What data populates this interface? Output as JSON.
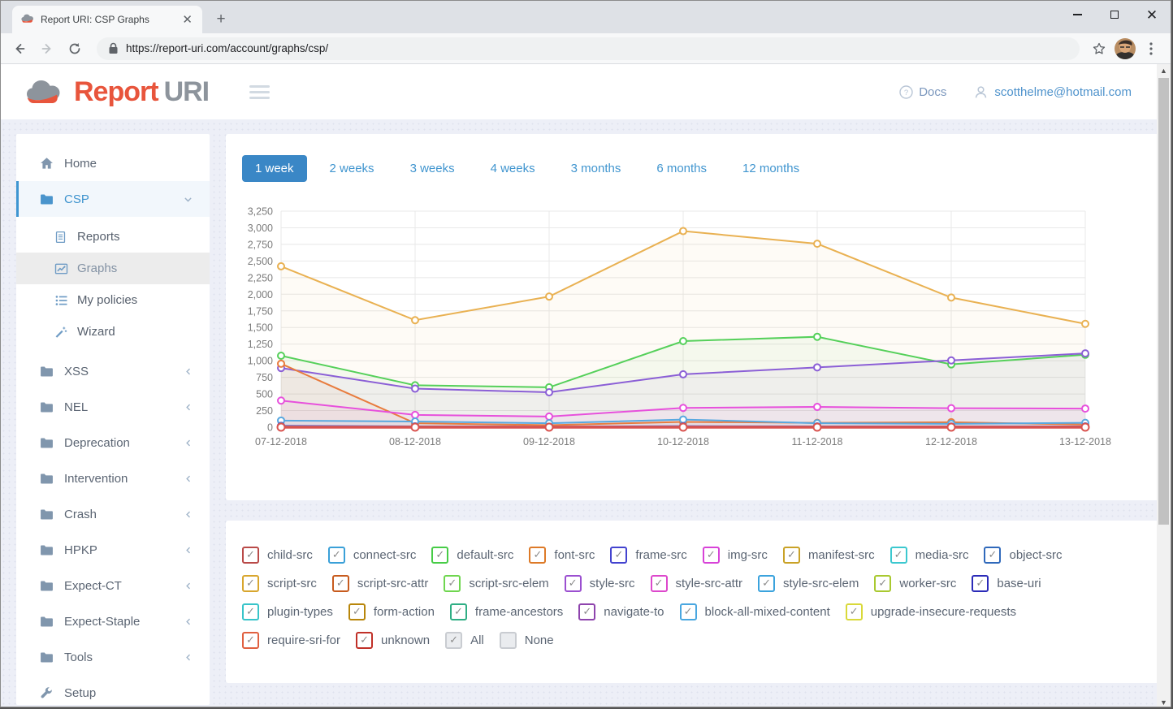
{
  "browser": {
    "tab_title": "Report URI: CSP Graphs",
    "url": "https://report-uri.com/account/graphs/csp/",
    "icons": [
      "favicon-cloud",
      "close-tab-icon",
      "new-tab-icon",
      "minimize-icon",
      "maximize-icon",
      "close-icon",
      "back-icon",
      "forward-icon",
      "refresh-icon",
      "lock-icon",
      "star-icon",
      "avatar",
      "kebab-menu-icon"
    ]
  },
  "header": {
    "logo_text_1": "Report",
    "logo_text_2": "URI",
    "docs_label": "Docs",
    "account_email": "scotthelme@hotmail.com",
    "icons": [
      "cloud-logo",
      "hamburger-icon",
      "question-icon",
      "user-icon"
    ]
  },
  "sidebar": {
    "items": [
      {
        "label": "Home",
        "icon": "home-icon",
        "type": "link"
      },
      {
        "label": "CSP",
        "icon": "folder-icon",
        "type": "group",
        "state": "expanded",
        "active": true,
        "children": [
          {
            "label": "Reports",
            "icon": "file-icon"
          },
          {
            "label": "Graphs",
            "icon": "chart-icon",
            "selected": true
          },
          {
            "label": "My policies",
            "icon": "list-icon"
          },
          {
            "label": "Wizard",
            "icon": "wand-icon"
          }
        ]
      },
      {
        "label": "XSS",
        "icon": "folder-icon",
        "type": "group",
        "state": "collapsed"
      },
      {
        "label": "NEL",
        "icon": "folder-icon",
        "type": "group",
        "state": "collapsed"
      },
      {
        "label": "Deprecation",
        "icon": "folder-icon",
        "type": "group",
        "state": "collapsed"
      },
      {
        "label": "Intervention",
        "icon": "folder-icon",
        "type": "group",
        "state": "collapsed"
      },
      {
        "label": "Crash",
        "icon": "folder-icon",
        "type": "group",
        "state": "collapsed"
      },
      {
        "label": "HPKP",
        "icon": "folder-icon",
        "type": "group",
        "state": "collapsed"
      },
      {
        "label": "Expect-CT",
        "icon": "folder-icon",
        "type": "group",
        "state": "collapsed"
      },
      {
        "label": "Expect-Staple",
        "icon": "folder-icon",
        "type": "group",
        "state": "collapsed"
      },
      {
        "label": "Tools",
        "icon": "folder-icon",
        "type": "group",
        "state": "collapsed"
      },
      {
        "label": "Setup",
        "icon": "wrench-icon",
        "type": "link"
      }
    ]
  },
  "range_tabs": [
    {
      "label": "1 week",
      "selected": true
    },
    {
      "label": "2 weeks",
      "selected": false
    },
    {
      "label": "3 weeks",
      "selected": false
    },
    {
      "label": "4 weeks",
      "selected": false
    },
    {
      "label": "3 months",
      "selected": false
    },
    {
      "label": "6 months",
      "selected": false
    },
    {
      "label": "12 months",
      "selected": false
    }
  ],
  "chart_data": {
    "type": "line",
    "x": [
      "07-12-2018",
      "08-12-2018",
      "09-12-2018",
      "10-12-2018",
      "11-12-2018",
      "12-12-2018",
      "13-12-2018"
    ],
    "ylim": [
      0,
      3250
    ],
    "ytick_step": 250,
    "grid": true,
    "legend_position": "none",
    "series": [
      {
        "name": "script-src",
        "color": "#e9b152",
        "width": 2,
        "values": [
          2420,
          1610,
          1965,
          2950,
          2760,
          1950,
          1555
        ]
      },
      {
        "name": "default-src",
        "color": "#55d05a",
        "width": 2,
        "values": [
          1075,
          630,
          600,
          1295,
          1360,
          945,
          1090
        ]
      },
      {
        "name": "style-src",
        "color": "#8b5fd6",
        "width": 2,
        "values": [
          890,
          580,
          525,
          795,
          900,
          1005,
          1110
        ]
      },
      {
        "name": "font-src",
        "color": "#e87c3e",
        "width": 2,
        "values": [
          955,
          60,
          30,
          80,
          65,
          75,
          40
        ]
      },
      {
        "name": "img-src",
        "color": "#e750dc",
        "width": 2,
        "values": [
          400,
          185,
          160,
          290,
          305,
          285,
          280
        ]
      },
      {
        "name": "connect-src",
        "color": "#58a8e0",
        "width": 2,
        "values": [
          100,
          85,
          60,
          115,
          60,
          50,
          65
        ]
      },
      {
        "name": "frame-src",
        "color": "#4545d0",
        "width": 2,
        "values": [
          20,
          12,
          8,
          15,
          12,
          10,
          12
        ]
      },
      {
        "name": "media-src",
        "color": "#3cc8cf",
        "width": 2,
        "values": [
          10,
          7,
          5,
          8,
          7,
          5,
          7
        ]
      },
      {
        "name": "manifest-src",
        "color": "#c9a227",
        "width": 2,
        "values": [
          7,
          5,
          4,
          6,
          5,
          4,
          5
        ]
      },
      {
        "name": "child-src",
        "color": "#c0392b",
        "width": 2,
        "values": [
          3,
          3,
          3,
          3,
          3,
          3,
          3
        ]
      },
      {
        "name": "unknown",
        "color": "#d9534f",
        "width": 3.5,
        "values": [
          0,
          0,
          0,
          0,
          0,
          0,
          0
        ]
      }
    ]
  },
  "legend": {
    "items": [
      {
        "label": "child-src",
        "color": "#b94a48",
        "checked": true
      },
      {
        "label": "connect-src",
        "color": "#3aa0d8",
        "checked": true
      },
      {
        "label": "default-src",
        "color": "#47cc47",
        "checked": true
      },
      {
        "label": "font-src",
        "color": "#dd7a28",
        "checked": true
      },
      {
        "label": "frame-src",
        "color": "#4343cf",
        "checked": true
      },
      {
        "label": "img-src",
        "color": "#d843d8",
        "checked": true
      },
      {
        "label": "manifest-src",
        "color": "#c9a227",
        "checked": true
      },
      {
        "label": "media-src",
        "color": "#3cc8cf",
        "checked": true
      },
      {
        "label": "object-src",
        "color": "#3069bb",
        "checked": true
      },
      {
        "label": "script-src",
        "color": "#d8a62e",
        "checked": true
      },
      {
        "label": "script-src-attr",
        "color": "#c75b1e",
        "checked": true
      },
      {
        "label": "script-src-elem",
        "color": "#6fd64f",
        "checked": true
      },
      {
        "label": "style-src",
        "color": "#9b4fd0",
        "checked": true
      },
      {
        "label": "style-src-attr",
        "color": "#dd48cc",
        "checked": true
      },
      {
        "label": "style-src-elem",
        "color": "#3ba3dd",
        "checked": true
      },
      {
        "label": "worker-src",
        "color": "#a9c930",
        "checked": true
      },
      {
        "label": "base-uri",
        "color": "#2b2bb8",
        "checked": true
      },
      {
        "label": "plugin-types",
        "color": "#38c4c9",
        "checked": true
      },
      {
        "label": "form-action",
        "color": "#b8860b",
        "checked": true
      },
      {
        "label": "frame-ancestors",
        "color": "#2fae84",
        "checked": true
      },
      {
        "label": "navigate-to",
        "color": "#8e44ad",
        "checked": true
      },
      {
        "label": "block-all-mixed-content",
        "color": "#4aa7e0",
        "checked": true
      },
      {
        "label": "upgrade-insecure-requests",
        "color": "#d9d93a",
        "checked": true
      },
      {
        "label": "require-sri-for",
        "color": "#e06040",
        "checked": true
      },
      {
        "label": "unknown",
        "color": "#c03028",
        "checked": true
      },
      {
        "label": "All",
        "color": "#b0b0b0",
        "checked": true,
        "muted": true
      },
      {
        "label": "None",
        "color": "#cfcfcf",
        "checked": false,
        "muted": true
      }
    ]
  },
  "colors": {
    "accent_blue": "#3a87c6",
    "link_blue": "#4095cf",
    "logo_red": "#e8553c",
    "sidebar_text": "#5b6573",
    "grid": "#e8e8e8",
    "axis_text": "#7b7b7b"
  }
}
